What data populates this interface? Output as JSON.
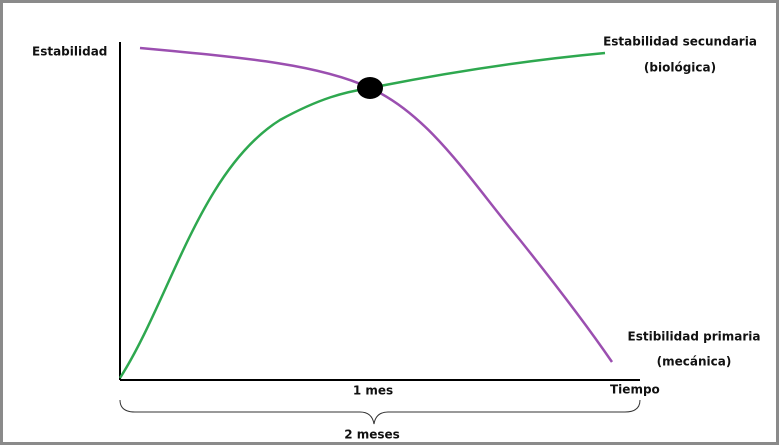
{
  "axes": {
    "y_label": "Estabilidad",
    "x_label": "Tiempo",
    "x_mark": "1 mes"
  },
  "curves": {
    "secondary": {
      "label": "Estabilidad secundaria",
      "sublabel": "(biológica)"
    },
    "primary": {
      "label": "Estibilidad primaria",
      "sublabel": "(mecánica)"
    }
  },
  "brace_label": "2 meses"
}
